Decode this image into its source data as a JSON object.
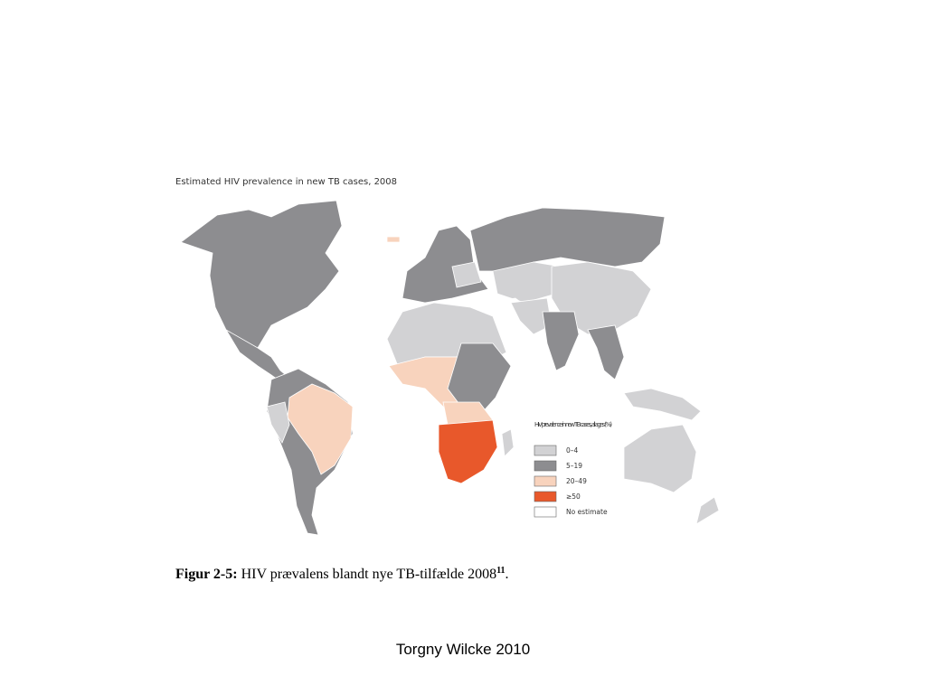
{
  "map": {
    "title": "Estimated HIV prevalence in new TB cases, 2008",
    "legend": {
      "title": "HIV prevalence in new TB cases, all ages (%)",
      "items": [
        {
          "label": "0–4",
          "color": "#d2d2d4"
        },
        {
          "label": "5–19",
          "color": "#8d8d90"
        },
        {
          "label": "20–49",
          "color": "#f8d3bd"
        },
        {
          "label": "≥50",
          "color": "#e8582b"
        },
        {
          "label": "No estimate",
          "color": "#ffffff"
        }
      ]
    }
  },
  "caption": {
    "label": "Figur 2-5:",
    "text": "HIV prævalens blandt nye TB-tilfælde 2008",
    "ref": "11",
    "end": "."
  },
  "footer": "Torgny Wilcke 2010"
}
